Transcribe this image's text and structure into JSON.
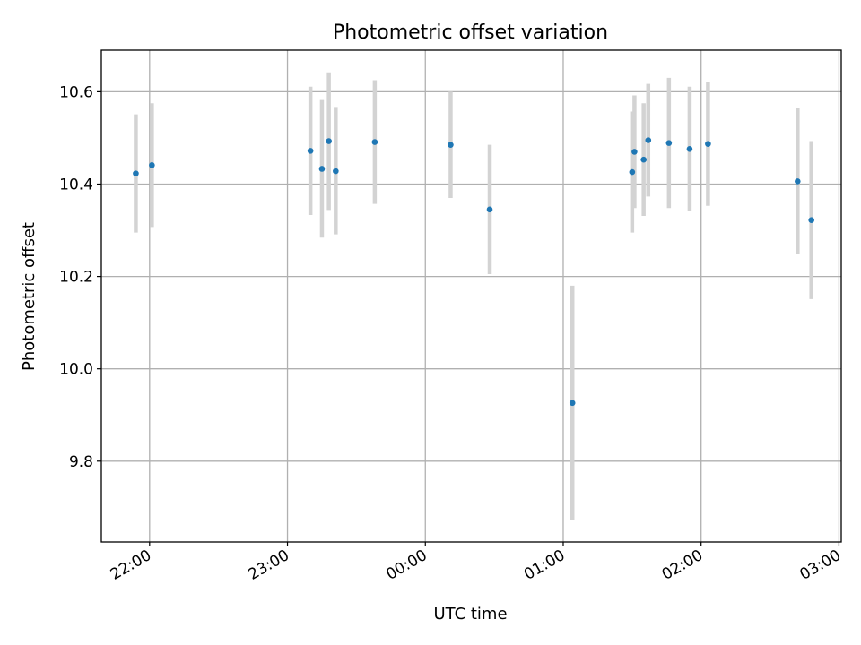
{
  "chart_data": {
    "type": "scatter",
    "title": "Photometric offset variation",
    "xlabel": "UTC time",
    "ylabel": "Photometric offset",
    "grid": true,
    "xlim": [
      "21:39",
      "03:01"
    ],
    "ylim": [
      9.625,
      10.69
    ],
    "x_ticks": [
      "22:00",
      "23:00",
      "00:00",
      "01:00",
      "02:00",
      "03:00"
    ],
    "y_ticks": [
      9.8,
      10.0,
      10.2,
      10.4,
      10.6
    ],
    "y_tick_labels": [
      "9.8",
      "10.0",
      "10.2",
      "10.4",
      "10.6"
    ],
    "marker_color": "#1f77b4",
    "errorbar_color": "#d3d3d3",
    "points": [
      {
        "x": "21:54",
        "y": 10.423,
        "err": 0.128
      },
      {
        "x": "22:01",
        "y": 10.441,
        "err": 0.134
      },
      {
        "x": "23:10",
        "y": 10.472,
        "err": 0.139
      },
      {
        "x": "23:15",
        "y": 10.433,
        "err": 0.149
      },
      {
        "x": "23:18",
        "y": 10.493,
        "err": 0.149
      },
      {
        "x": "23:21",
        "y": 10.428,
        "err": 0.137
      },
      {
        "x": "23:38",
        "y": 10.491,
        "err": 0.134
      },
      {
        "x": "00:11",
        "y": 10.485,
        "err": 0.115
      },
      {
        "x": "00:28",
        "y": 10.345,
        "err": 0.14
      },
      {
        "x": "01:04",
        "y": 9.926,
        "err": 0.254
      },
      {
        "x": "01:30",
        "y": 10.426,
        "err": 0.131
      },
      {
        "x": "01:31",
        "y": 10.47,
        "err": 0.122
      },
      {
        "x": "01:35",
        "y": 10.453,
        "err": 0.122
      },
      {
        "x": "01:37",
        "y": 10.495,
        "err": 0.122
      },
      {
        "x": "01:46",
        "y": 10.489,
        "err": 0.141
      },
      {
        "x": "01:55",
        "y": 10.476,
        "err": 0.135
      },
      {
        "x": "02:03",
        "y": 10.487,
        "err": 0.134
      },
      {
        "x": "02:42",
        "y": 10.406,
        "err": 0.158
      },
      {
        "x": "02:48",
        "y": 10.322,
        "err": 0.171
      }
    ]
  }
}
